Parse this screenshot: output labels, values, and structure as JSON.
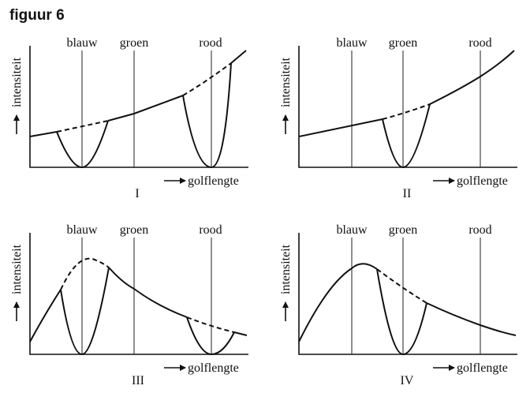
{
  "figure_title": "figuur 6",
  "axis_x_label": "golflengte",
  "axis_y_label": "intensiteit",
  "lines": {
    "blue": "blauw",
    "green": "groen",
    "red": "rood"
  },
  "panels": [
    {
      "numeral": "I"
    },
    {
      "numeral": "II"
    },
    {
      "numeral": "III"
    },
    {
      "numeral": "IV"
    }
  ]
}
